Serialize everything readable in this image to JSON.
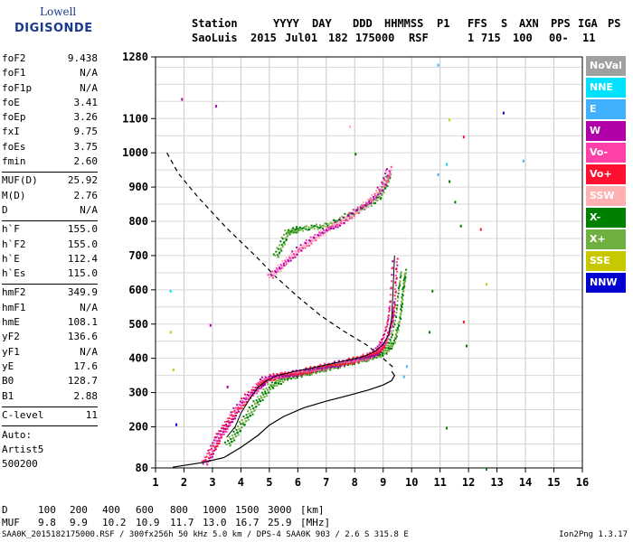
{
  "logo": {
    "line1": "Lowell",
    "line2": "DIGISONDE"
  },
  "header": {
    "labels": [
      "Station",
      "YYYY",
      "DAY",
      "DDD",
      "HHMMSS",
      "P1",
      "FFS",
      "S",
      "AXN",
      "PPS",
      "IGA",
      "PS"
    ],
    "station": "SaoLuis",
    "year": "2015",
    "day": "Jul01",
    "doy": "182",
    "time": "175000",
    "p1": "RSF",
    "ffs": "",
    "s": "1",
    "axn": "715",
    "pps": "100",
    "iga": "00-",
    "ps": "11"
  },
  "params_a": [
    {
      "k": "foF2",
      "v": "9.438"
    },
    {
      "k": "foF1",
      "v": "N/A"
    },
    {
      "k": "foF1p",
      "v": "N/A"
    },
    {
      "k": "foE",
      "v": "3.41"
    },
    {
      "k": "foEp",
      "v": "3.26"
    },
    {
      "k": "fxI",
      "v": "9.75"
    },
    {
      "k": "foEs",
      "v": "3.75"
    },
    {
      "k": "fmin",
      "v": "2.60"
    }
  ],
  "params_b": [
    {
      "k": "MUF(D)",
      "v": "25.92"
    },
    {
      "k": "M(D)",
      "v": "2.76"
    },
    {
      "k": "D",
      "v": "N/A"
    }
  ],
  "params_c": [
    {
      "k": "h`F",
      "v": "155.0"
    },
    {
      "k": "h`F2",
      "v": "155.0"
    },
    {
      "k": "h`E",
      "v": "112.4"
    },
    {
      "k": "h`Es",
      "v": "115.0"
    }
  ],
  "params_d": [
    {
      "k": "hmF2",
      "v": "349.9"
    },
    {
      "k": "hmF1",
      "v": "N/A"
    },
    {
      "k": "hmE",
      "v": "108.1"
    },
    {
      "k": "yF2",
      "v": "136.6"
    },
    {
      "k": "yF1",
      "v": "N/A"
    },
    {
      "k": "yE",
      "v": "17.6"
    },
    {
      "k": "B0",
      "v": "128.7"
    },
    {
      "k": "B1",
      "v": "2.88"
    }
  ],
  "params_e": [
    {
      "k": "C-level",
      "v": "11"
    }
  ],
  "auto": [
    "Auto:",
    "Artist5",
    "500200"
  ],
  "legend": [
    {
      "label": "NoVal",
      "color": "#a0a0a0"
    },
    {
      "label": "NNE",
      "color": "#00e0ff"
    },
    {
      "label": "E",
      "color": "#40b0ff"
    },
    {
      "label": "W",
      "color": "#b000a8"
    },
    {
      "label": "Vo-",
      "color": "#ff40a8"
    },
    {
      "label": "Vo+",
      "color": "#ff1030"
    },
    {
      "label": "SSW",
      "color": "#ffb0b0"
    },
    {
      "label": "X-",
      "color": "#008000"
    },
    {
      "label": "X+",
      "color": "#70b040"
    },
    {
      "label": "SSE",
      "color": "#c8c800"
    },
    {
      "label": "NNW",
      "color": "#0000d0"
    }
  ],
  "bottom": {
    "d_label": "D",
    "d_values": [
      "100",
      "200",
      "400",
      "600",
      "800",
      "1000",
      "1500",
      "3000"
    ],
    "d_unit": "[km]",
    "muf_label": "MUF",
    "muf_values": [
      "9.8",
      "9.9",
      "10.2",
      "10.9",
      "11.7",
      "13.0",
      "16.7",
      "25.9"
    ],
    "muf_unit": "[MHz]"
  },
  "footer": "SAA0K_2015182175000.RSF / 300fx256h 50 kHz 5.0 km / DPS-4 SAA0K 903 / 2.6 S 315.8 E",
  "version": "Ion2Png 1.3.17",
  "chart_data": {
    "type": "scatter",
    "xlim": [
      1,
      16
    ],
    "ylim": [
      80,
      1280
    ],
    "xticks": [
      1,
      2,
      3,
      4,
      5,
      6,
      7,
      8,
      9,
      10,
      11,
      12,
      13,
      14,
      15,
      16
    ],
    "yticks": [
      80,
      200,
      300,
      400,
      500,
      600,
      700,
      800,
      900,
      1000,
      1100,
      1280
    ],
    "grid": true,
    "profile_solid": [
      [
        1.6,
        82
      ],
      [
        2.6,
        95
      ],
      [
        3.4,
        110
      ],
      [
        4.0,
        140
      ],
      [
        4.6,
        175
      ],
      [
        5.0,
        205
      ],
      [
        5.5,
        230
      ],
      [
        6.2,
        255
      ],
      [
        7.0,
        275
      ],
      [
        7.8,
        292
      ],
      [
        8.5,
        308
      ],
      [
        9.0,
        322
      ],
      [
        9.3,
        335
      ],
      [
        9.4,
        350
      ],
      [
        9.3,
        362
      ]
    ],
    "profile_dashed": [
      [
        1.4,
        1000
      ],
      [
        1.8,
        940
      ],
      [
        2.5,
        870
      ],
      [
        3.5,
        780
      ],
      [
        4.5,
        700
      ],
      [
        5.2,
        640
      ],
      [
        6.0,
        580
      ],
      [
        6.8,
        525
      ],
      [
        7.6,
        480
      ],
      [
        8.4,
        440
      ],
      [
        9.0,
        400
      ],
      [
        9.4,
        370
      ]
    ],
    "o_trace": [
      [
        2.7,
        95
      ],
      [
        3.0,
        140
      ],
      [
        3.2,
        175
      ],
      [
        3.5,
        210
      ],
      [
        3.8,
        250
      ],
      [
        4.2,
        290
      ],
      [
        4.6,
        320
      ],
      [
        4.8,
        340
      ],
      [
        5.2,
        350
      ],
      [
        5.6,
        355
      ],
      [
        6.0,
        360
      ],
      [
        6.5,
        370
      ],
      [
        7.0,
        380
      ],
      [
        7.5,
        388
      ],
      [
        8.0,
        398
      ],
      [
        8.5,
        410
      ],
      [
        8.8,
        425
      ],
      [
        9.0,
        450
      ],
      [
        9.2,
        500
      ],
      [
        9.3,
        560
      ],
      [
        9.4,
        700
      ]
    ],
    "x_trace": [
      [
        3.5,
        150
      ],
      [
        4.0,
        210
      ],
      [
        4.5,
        270
      ],
      [
        5.0,
        320
      ],
      [
        5.5,
        345
      ],
      [
        6.0,
        355
      ],
      [
        6.5,
        365
      ],
      [
        7.0,
        375
      ],
      [
        7.5,
        385
      ],
      [
        8.0,
        395
      ],
      [
        8.5,
        405
      ],
      [
        9.0,
        420
      ],
      [
        9.3,
        450
      ],
      [
        9.5,
        520
      ],
      [
        9.6,
        600
      ],
      [
        9.7,
        660
      ]
    ],
    "o_multi": [
      [
        5.0,
        640
      ],
      [
        5.5,
        680
      ],
      [
        6.0,
        720
      ],
      [
        6.5,
        750
      ],
      [
        7.0,
        780
      ],
      [
        7.5,
        800
      ],
      [
        8.0,
        830
      ],
      [
        8.5,
        860
      ],
      [
        9.0,
        910
      ],
      [
        9.2,
        960
      ]
    ],
    "x_multi": [
      [
        5.2,
        700
      ],
      [
        5.6,
        770
      ],
      [
        6.0,
        780
      ],
      [
        7.0,
        790
      ],
      [
        8.0,
        830
      ],
      [
        8.8,
        870
      ],
      [
        9.2,
        940
      ]
    ],
    "noise": [
      [
        1.9,
        1160,
        "#b000a8"
      ],
      [
        3.1,
        1140,
        "#b000a8"
      ],
      [
        10.9,
        1260,
        "#40b0ff"
      ],
      [
        11.8,
        1050,
        "#ff1030"
      ],
      [
        13.2,
        1120,
        "#0000d0"
      ],
      [
        11.5,
        860,
        "#008000"
      ],
      [
        11.7,
        790,
        "#008000"
      ],
      [
        11.8,
        510,
        "#ff1030"
      ],
      [
        11.9,
        440,
        "#008000"
      ],
      [
        12.6,
        620,
        "#c8c800"
      ],
      [
        12.6,
        80,
        "#008000"
      ],
      [
        12.4,
        780,
        "#ff1030"
      ],
      [
        11.3,
        1100,
        "#c8c800"
      ],
      [
        10.7,
        600,
        "#008000"
      ],
      [
        10.6,
        480,
        "#008000"
      ],
      [
        9.8,
        380,
        "#40b0ff"
      ],
      [
        9.7,
        350,
        "#40b0ff"
      ],
      [
        1.5,
        600,
        "#00e0ff"
      ],
      [
        1.5,
        480,
        "#c8c800"
      ],
      [
        1.6,
        370,
        "#c8c800"
      ],
      [
        1.7,
        210,
        "#0000d0"
      ],
      [
        2.9,
        500,
        "#b000a8"
      ],
      [
        3.5,
        320,
        "#b000a8"
      ],
      [
        7.8,
        1080,
        "#ffb0b0"
      ],
      [
        8.0,
        1000,
        "#008000"
      ],
      [
        11.2,
        970,
        "#00e0ff"
      ],
      [
        11.3,
        920,
        "#008000"
      ],
      [
        10.9,
        940,
        "#40b0ff"
      ],
      [
        13.9,
        980,
        "#40b0ff"
      ],
      [
        11.2,
        200,
        "#008000"
      ]
    ]
  }
}
